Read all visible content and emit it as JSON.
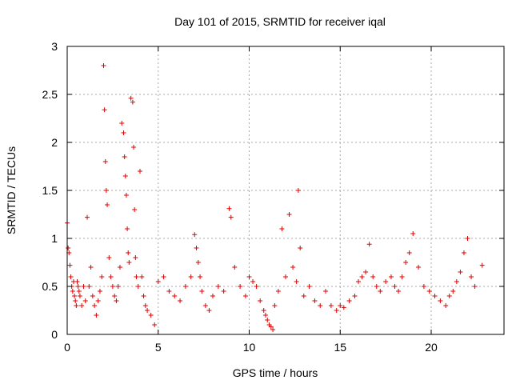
{
  "chart_data": {
    "type": "scatter",
    "title": "Day 101 of 2015, SRMTID for receiver iqal",
    "xlabel": "GPS time / hours",
    "ylabel": "SRMTID / TECUs",
    "xlim": [
      0,
      24
    ],
    "ylim": [
      0,
      3
    ],
    "xticks": [
      0,
      5,
      10,
      15,
      20
    ],
    "yticks": [
      0,
      0.5,
      1,
      1.5,
      2,
      2.5,
      3
    ],
    "xtick_labels": [
      "0",
      "5",
      "10",
      "15",
      "20"
    ],
    "ytick_labels": [
      "0",
      "0.5",
      "1",
      "1.5",
      "2",
      "2.5",
      "3"
    ],
    "grid": true,
    "marker": "+",
    "series_color": "#e00000",
    "series": [
      {
        "name": "SRMTID",
        "x": [
          0.0,
          0.05,
          0.1,
          0.15,
          0.2,
          0.25,
          0.3,
          0.35,
          0.4,
          0.45,
          0.5,
          0.55,
          0.6,
          0.65,
          0.7,
          0.8,
          0.9,
          1.0,
          1.1,
          1.2,
          1.3,
          1.4,
          1.5,
          1.6,
          1.7,
          1.8,
          1.9,
          2.0,
          2.05,
          2.1,
          2.15,
          2.2,
          2.3,
          2.4,
          2.5,
          2.6,
          2.7,
          2.8,
          2.9,
          3.0,
          3.1,
          3.15,
          3.2,
          3.25,
          3.3,
          3.35,
          3.4,
          3.5,
          3.6,
          3.65,
          3.7,
          3.75,
          3.8,
          3.9,
          4.0,
          4.1,
          4.2,
          4.3,
          4.4,
          4.6,
          4.8,
          5.0,
          5.3,
          5.6,
          5.9,
          6.2,
          6.5,
          6.8,
          7.0,
          7.1,
          7.2,
          7.3,
          7.4,
          7.6,
          7.8,
          8.0,
          8.3,
          8.6,
          8.9,
          9.0,
          9.2,
          9.5,
          9.8,
          10.0,
          10.2,
          10.4,
          10.6,
          10.8,
          10.9,
          11.0,
          11.1,
          11.2,
          11.3,
          11.4,
          11.6,
          11.8,
          12.0,
          12.2,
          12.4,
          12.6,
          12.7,
          12.8,
          13.0,
          13.3,
          13.6,
          13.9,
          14.2,
          14.5,
          14.8,
          15.0,
          15.2,
          15.5,
          15.8,
          16.0,
          16.2,
          16.4,
          16.6,
          16.8,
          17.0,
          17.2,
          17.5,
          17.8,
          18.0,
          18.2,
          18.4,
          18.6,
          18.8,
          19.0,
          19.3,
          19.6,
          19.9,
          20.2,
          20.5,
          20.8,
          21.0,
          21.2,
          21.4,
          21.6,
          21.8,
          22.0,
          22.2,
          22.4,
          22.8
        ],
        "y": [
          1.16,
          0.9,
          0.85,
          0.72,
          0.6,
          0.5,
          0.45,
          0.55,
          0.4,
          0.35,
          0.3,
          0.55,
          0.5,
          0.45,
          0.4,
          0.3,
          0.5,
          0.35,
          1.22,
          0.5,
          0.7,
          0.4,
          0.3,
          0.2,
          0.35,
          0.45,
          0.6,
          2.8,
          2.34,
          1.8,
          1.5,
          1.35,
          0.8,
          0.6,
          0.5,
          0.4,
          0.35,
          0.5,
          0.7,
          2.2,
          2.1,
          1.85,
          1.65,
          1.45,
          1.1,
          0.85,
          0.75,
          2.46,
          2.42,
          1.95,
          1.3,
          0.8,
          0.6,
          0.5,
          1.7,
          0.6,
          0.4,
          0.3,
          0.25,
          0.2,
          0.1,
          0.55,
          0.6,
          0.45,
          0.4,
          0.35,
          0.5,
          0.6,
          1.04,
          0.9,
          0.75,
          0.6,
          0.45,
          0.3,
          0.25,
          0.4,
          0.5,
          0.45,
          1.31,
          1.22,
          0.7,
          0.5,
          0.4,
          0.6,
          0.55,
          0.5,
          0.35,
          0.25,
          0.2,
          0.15,
          0.1,
          0.08,
          0.05,
          0.3,
          0.45,
          1.1,
          0.6,
          1.25,
          0.7,
          0.55,
          1.5,
          0.9,
          0.4,
          0.5,
          0.35,
          0.3,
          0.45,
          0.3,
          0.25,
          0.3,
          0.28,
          0.35,
          0.4,
          0.55,
          0.6,
          0.65,
          0.94,
          0.6,
          0.5,
          0.45,
          0.55,
          0.6,
          0.5,
          0.45,
          0.6,
          0.75,
          0.85,
          1.05,
          0.7,
          0.5,
          0.45,
          0.4,
          0.35,
          0.3,
          0.4,
          0.45,
          0.55,
          0.65,
          0.85,
          1.0,
          0.6,
          0.5,
          0.72
        ]
      }
    ]
  }
}
